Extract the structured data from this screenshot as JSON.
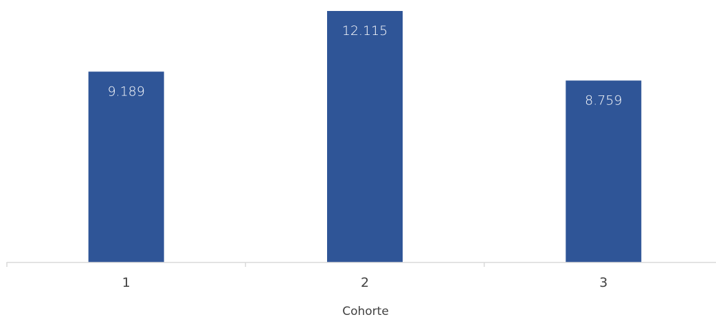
{
  "chart_data": {
    "type": "bar",
    "categories": [
      "1",
      "2",
      "3"
    ],
    "values": [
      9189,
      12115,
      8759
    ],
    "value_labels": [
      "9.189",
      "12.115",
      "8.759"
    ],
    "title": "",
    "xlabel": "Cohorte",
    "ylabel": "",
    "ylim": [
      0,
      12115
    ],
    "grid": false,
    "legend": "none",
    "bar_color": "#2F5597",
    "axis_color": "#D9D9D9",
    "text_color": "#404040"
  }
}
